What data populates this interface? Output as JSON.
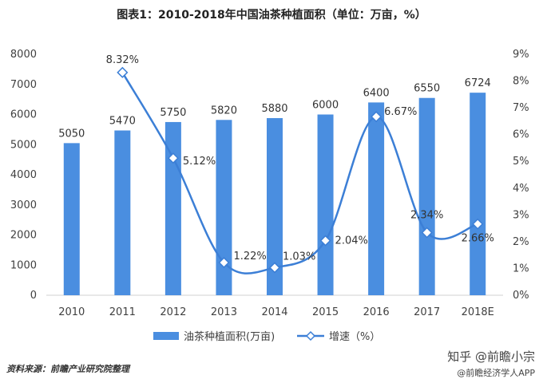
{
  "title": "图表1：2010-2018年中国油茶种植面积（单位：万亩，%）",
  "source": "资料来源：前瞻产业研究院整理",
  "watermark": {
    "main": "知乎 @前瞻小宗",
    "sub": "@前瞻经济学人APP"
  },
  "colors": {
    "bar": "#4a8ee0",
    "line": "#3c7fd6",
    "marker_fill": "#ffffff"
  },
  "chart_data": {
    "type": "bar",
    "categories": [
      "2010",
      "2011",
      "2012",
      "2013",
      "2014",
      "2015",
      "2016",
      "2017",
      "2018E"
    ],
    "series": [
      {
        "name": "油茶种植面积(万亩)",
        "type": "bar",
        "axis": "left",
        "values": [
          5050,
          5470,
          5750,
          5820,
          5880,
          6000,
          6400,
          6550,
          6724
        ],
        "labels": [
          "5050",
          "5470",
          "5750",
          "5820",
          "5880",
          "6000",
          "6400",
          "6550",
          "6724"
        ]
      },
      {
        "name": "增速（%）",
        "type": "line",
        "axis": "right",
        "smooth": true,
        "marker": "diamond",
        "values": [
          null,
          8.32,
          5.12,
          1.22,
          1.03,
          2.04,
          6.67,
          2.34,
          2.66
        ],
        "labels": [
          "",
          "8.32%",
          "5.12%",
          "1.22%",
          "1.03%",
          "2.04%",
          "6.67%",
          "2.34%",
          "2.66%"
        ]
      }
    ],
    "y_left": {
      "lim": [
        0,
        8000
      ],
      "ticks": [
        "0",
        "1000",
        "2000",
        "3000",
        "4000",
        "5000",
        "6000",
        "7000",
        "8000"
      ]
    },
    "y_right": {
      "lim": [
        0,
        9
      ],
      "ticks": [
        "0%",
        "1%",
        "2%",
        "3%",
        "4%",
        "5%",
        "6%",
        "7%",
        "8%",
        "9%"
      ]
    },
    "grid": false,
    "legend_position": "bottom"
  }
}
